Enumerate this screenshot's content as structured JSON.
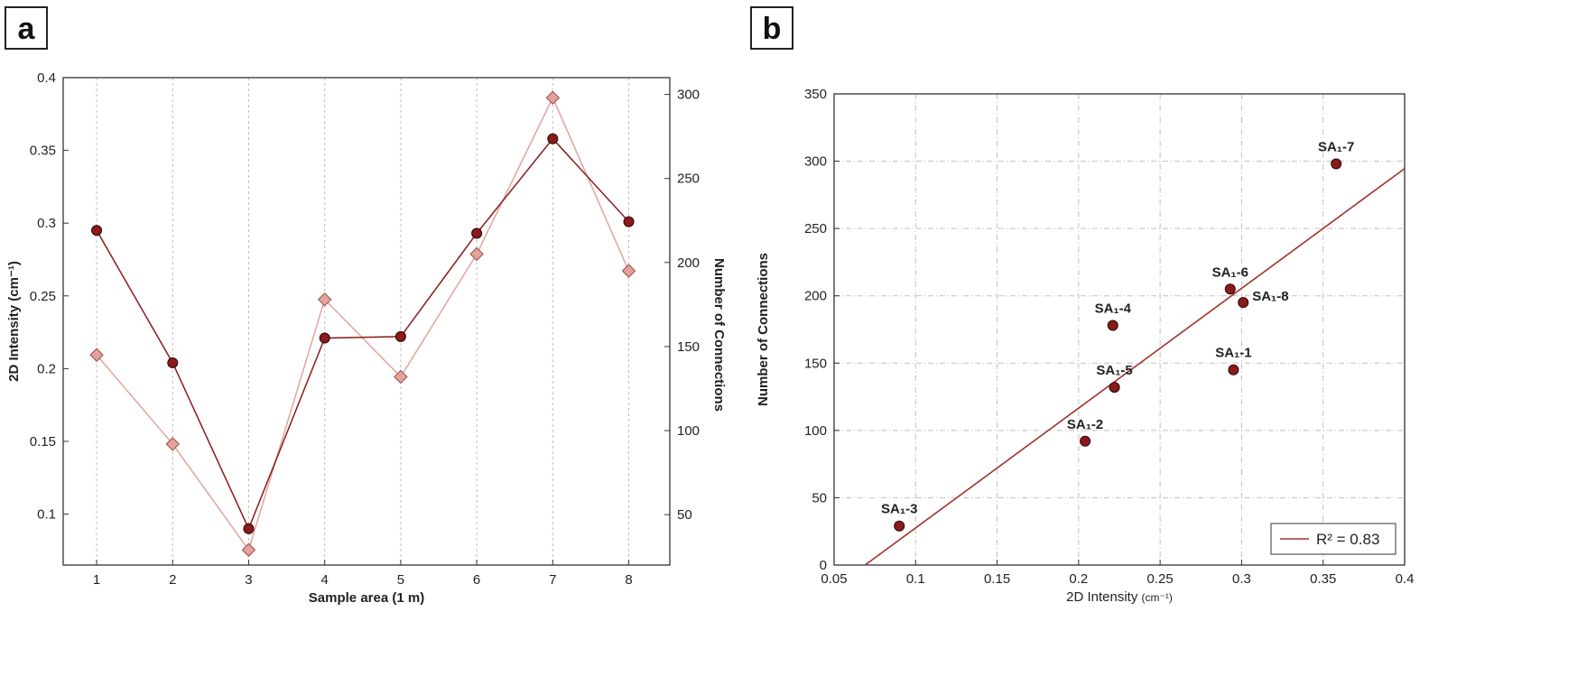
{
  "panels": {
    "a": {
      "label": "a"
    },
    "b": {
      "label": "b"
    }
  },
  "colors": {
    "intensity": "#8b1a1a",
    "connections": "#e3a39c",
    "connections_edge": "#9b4a44",
    "fit_line": "#a0322d",
    "grid": "#bfbfbf"
  },
  "chart_data": [
    {
      "id": "a",
      "type": "line",
      "xlabel": "Sample area (1 m)",
      "ylabel_left": "2D Intensity (cm⁻¹)",
      "ylabel_right": "Number of Connections",
      "x": [
        1,
        2,
        3,
        4,
        5,
        6,
        7,
        8
      ],
      "x_ticks": [
        "1",
        "2",
        "3",
        "4",
        "5",
        "6",
        "7",
        "8"
      ],
      "xlim": [
        0.56,
        8.54
      ],
      "ylim_left": [
        0.065,
        0.4
      ],
      "y_ticks_left": [
        "0.1",
        "0.15",
        "0.2",
        "0.25",
        "0.3",
        "0.35",
        "0.4"
      ],
      "ylim_right": [
        20,
        310
      ],
      "y_ticks_right": [
        "50",
        "100",
        "150",
        "200",
        "250",
        "300"
      ],
      "grid": "vertical",
      "series": [
        {
          "name": "2D Intensity",
          "axis": "left",
          "marker": "circle",
          "values": [
            0.295,
            0.204,
            0.09,
            0.221,
            0.222,
            0.293,
            0.358,
            0.301
          ]
        },
        {
          "name": "Number of Connections",
          "axis": "right",
          "marker": "diamond",
          "values": [
            145,
            92,
            29,
            178,
            132,
            205,
            298,
            195
          ]
        }
      ]
    },
    {
      "id": "b",
      "type": "scatter",
      "xlabel": "2D Intensity",
      "xlabel_unit": "(cm⁻¹)",
      "ylabel": "Number of Connections",
      "xlim": [
        0.05,
        0.4
      ],
      "x_ticks": [
        "0.05",
        "0.1",
        "0.15",
        "0.2",
        "0.25",
        "0.3",
        "0.35",
        "0.4"
      ],
      "ylim": [
        0,
        350
      ],
      "y_ticks": [
        "0",
        "50",
        "100",
        "150",
        "200",
        "250",
        "300",
        "350"
      ],
      "grid": "both",
      "points": [
        {
          "label": "SA₁-1",
          "x": 0.295,
          "y": 145,
          "label_pos": "top"
        },
        {
          "label": "SA₁-2",
          "x": 0.204,
          "y": 92,
          "label_pos": "top"
        },
        {
          "label": "SA₁-3",
          "x": 0.09,
          "y": 29,
          "label_pos": "top"
        },
        {
          "label": "SA₁-4",
          "x": 0.221,
          "y": 178,
          "label_pos": "top"
        },
        {
          "label": "SA₁-5",
          "x": 0.222,
          "y": 132,
          "label_pos": "top"
        },
        {
          "label": "SA₁-6",
          "x": 0.293,
          "y": 205,
          "label_pos": "top"
        },
        {
          "label": "SA₁-7",
          "x": 0.358,
          "y": 298,
          "label_pos": "top"
        },
        {
          "label": "SA₁-8",
          "x": 0.301,
          "y": 195,
          "label_pos": "right"
        }
      ],
      "fit": {
        "x1": 0.069,
        "y1": 0,
        "x2": 0.4,
        "y2": 294.5
      },
      "legend": {
        "text": "R² = 0.83",
        "position": "bottom-right"
      }
    }
  ]
}
